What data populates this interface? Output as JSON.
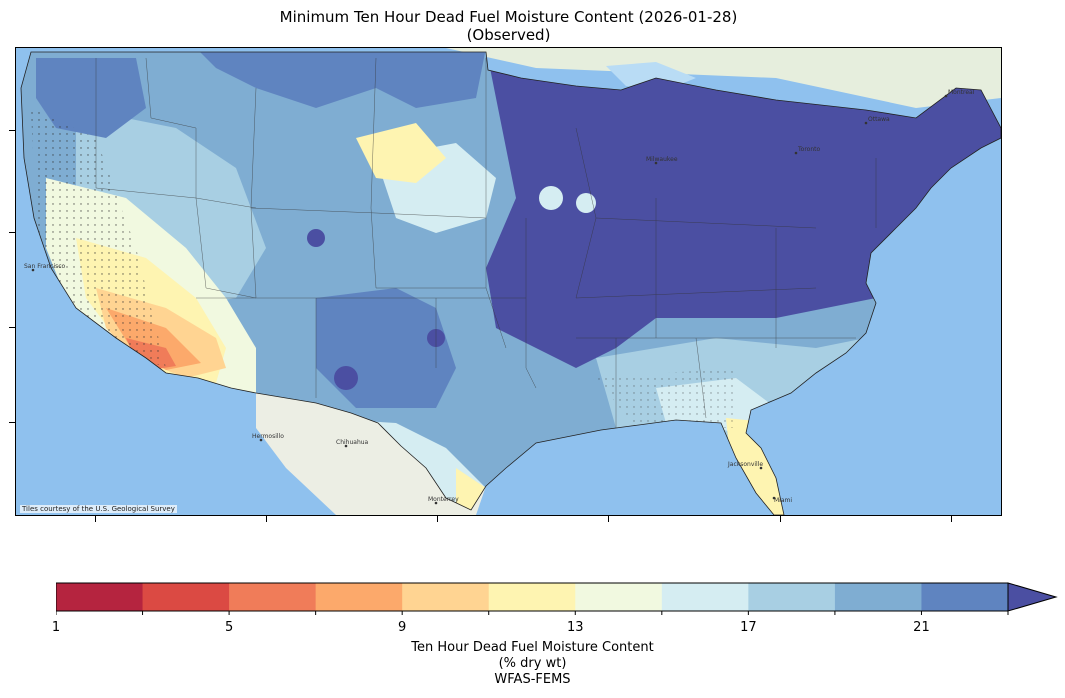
{
  "title": {
    "line1": "Minimum Ten Hour Dead Fuel Moisture Content (2026-01-28)",
    "line2": "(Observed)"
  },
  "map": {
    "attribution": "Tiles courtesy of the U.S. Geological Survey",
    "basemap_colors": {
      "ocean": "#8fc1ee",
      "land": "#eceee4",
      "lakes": "#b9dcf5"
    },
    "place_labels": [
      "San Francisco",
      "Chihuahua",
      "Jacksonville",
      "Miami",
      "Milwaukee",
      "Toronto",
      "Montreal",
      "Ottawa",
      "Hermosillo",
      "Monterrey"
    ]
  },
  "colorbar": {
    "caption_line1": "Ten Hour Dead Fuel Moisture Content",
    "caption_line2": "(% dry wt)",
    "caption_line3": "WFAS-FEMS",
    "min": 1,
    "max": 23,
    "step": 2,
    "extend": "max",
    "tick_labels": [
      "1",
      "5",
      "9",
      "13",
      "17",
      "21"
    ],
    "tick_values": [
      1,
      5,
      9,
      13,
      17,
      21
    ],
    "colors": [
      "#b5243f",
      "#db4a43",
      "#f07c59",
      "#fca96b",
      "#ffd492",
      "#fef4b1",
      "#f1f9e0",
      "#d5edf2",
      "#a8cfe3",
      "#7fadd2",
      "#5f84c0",
      "#4b4fa2"
    ]
  }
}
